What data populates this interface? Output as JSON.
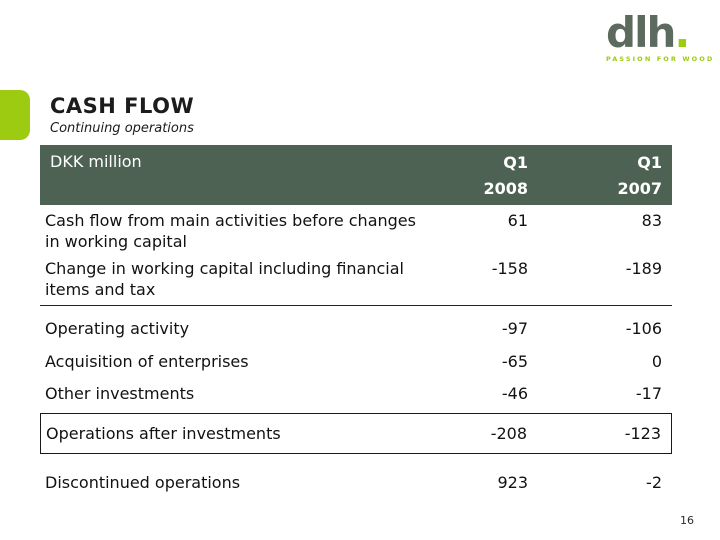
{
  "logo": {
    "text": "dlh",
    "dot": ".",
    "tagline": "PASSION FOR WOOD"
  },
  "slide": {
    "title": "CASH FLOW",
    "subtitle": "Continuing operations",
    "page_number": "16"
  },
  "table": {
    "header": {
      "label": "DKK million",
      "col1_line1": "Q1",
      "col1_line2": "2008",
      "col2_line1": "Q1",
      "col2_line2": "2007"
    },
    "rows": [
      {
        "label": "Cash flow from main activities before changes in working capital",
        "q1_2008": "61",
        "q1_2007": "83"
      },
      {
        "label": "Change in working capital including financial items and tax",
        "q1_2008": "-158",
        "q1_2007": "-189"
      },
      {
        "label": "Operating activity",
        "q1_2008": "-97",
        "q1_2007": "-106"
      },
      {
        "label": "Acquisition of enterprises",
        "q1_2008": "-65",
        "q1_2007": "0"
      },
      {
        "label": "Other investments",
        "q1_2008": "-46",
        "q1_2007": "-17"
      },
      {
        "label": "Operations after investments",
        "q1_2008": "-208",
        "q1_2007": "-123"
      },
      {
        "label": "Discontinued operations",
        "q1_2008": "923",
        "q1_2007": "-2"
      }
    ]
  },
  "colors": {
    "accent_green": "#9ccb12",
    "table_header_bg": "#4d6253",
    "logo_gray_green": "#5c6b5e",
    "text": "#141414"
  }
}
